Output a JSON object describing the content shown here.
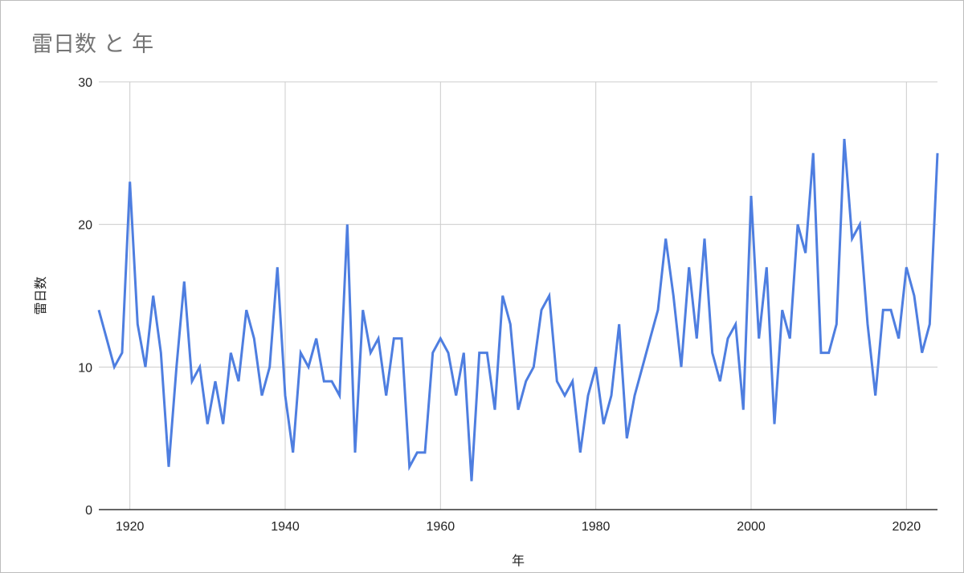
{
  "chart_data": {
    "type": "line",
    "title": "雷日数 と 年",
    "xlabel": "年",
    "ylabel": "雷日数",
    "xlim": [
      1916,
      2024
    ],
    "ylim": [
      0,
      30
    ],
    "x_ticks": [
      1920,
      1940,
      1960,
      1980,
      2000,
      2020
    ],
    "y_ticks": [
      0,
      10,
      20,
      30
    ],
    "grid": true,
    "legend": "none",
    "series_color": "#4e7ee0",
    "series": [
      {
        "x": [
          1916,
          1917,
          1918,
          1919,
          1920,
          1921,
          1922,
          1923,
          1924,
          1925,
          1926,
          1927,
          1928,
          1929,
          1930,
          1931,
          1932,
          1933,
          1934,
          1935,
          1936,
          1937,
          1938,
          1939,
          1940,
          1941,
          1942,
          1943,
          1944,
          1945,
          1946,
          1947,
          1948,
          1949,
          1950,
          1951,
          1952,
          1953,
          1954,
          1955,
          1956,
          1957,
          1958,
          1959,
          1960,
          1961,
          1962,
          1963,
          1964,
          1965,
          1966,
          1967,
          1968,
          1969,
          1970,
          1971,
          1972,
          1973,
          1974,
          1975,
          1976,
          1977,
          1978,
          1979,
          1980,
          1981,
          1982,
          1983,
          1984,
          1985,
          1986,
          1987,
          1988,
          1989,
          1990,
          1991,
          1992,
          1993,
          1994,
          1995,
          1996,
          1997,
          1998,
          1999,
          2000,
          2001,
          2002,
          2003,
          2004,
          2005,
          2006,
          2007,
          2008,
          2009,
          2010,
          2011,
          2012,
          2013,
          2014,
          2015,
          2016,
          2017,
          2018,
          2019,
          2020,
          2021,
          2022,
          2023,
          2024
        ],
        "values": [
          14,
          12,
          10,
          11,
          23,
          13,
          10,
          15,
          11,
          3,
          10,
          16,
          9,
          10,
          6,
          9,
          6,
          11,
          9,
          14,
          12,
          8,
          10,
          17,
          8,
          4,
          11,
          10,
          12,
          9,
          9,
          8,
          20,
          4,
          14,
          11,
          12,
          8,
          12,
          12,
          3,
          4,
          4,
          11,
          12,
          11,
          8,
          11,
          2,
          11,
          11,
          7,
          15,
          13,
          7,
          9,
          10,
          14,
          15,
          9,
          8,
          9,
          4,
          8,
          10,
          6,
          8,
          13,
          5,
          8,
          10,
          12,
          14,
          19,
          15,
          10,
          17,
          12,
          19,
          11,
          9,
          12,
          13,
          7,
          22,
          12,
          17,
          6,
          14,
          12,
          20,
          18,
          25,
          11,
          11,
          13,
          26,
          19,
          20,
          13,
          8,
          14,
          14,
          12,
          17,
          15,
          11,
          13,
          25
        ]
      }
    ]
  }
}
